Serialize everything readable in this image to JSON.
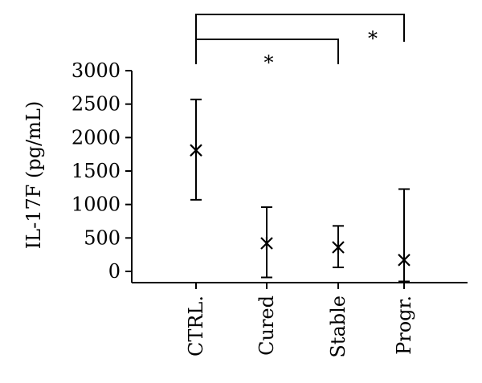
{
  "chart_data": {
    "type": "scatter",
    "title": "",
    "xlabel": "",
    "ylabel": "IL-17F (pg/mL)",
    "ylim": [
      0,
      3000
    ],
    "yticks": [
      0,
      500,
      1000,
      1500,
      2000,
      2500,
      3000
    ],
    "categories": [
      "CTRL.",
      "Cured",
      "Stable",
      "Progr."
    ],
    "series": [
      {
        "marker": "asterisk",
        "values": [
          1810,
          420,
          360,
          170
        ],
        "error_low": [
          1070,
          -90,
          60,
          -150
        ],
        "error_high": [
          2570,
          960,
          680,
          1230
        ]
      }
    ],
    "significance": [
      {
        "from": "CTRL.",
        "to": "Stable",
        "label": "*"
      },
      {
        "from": "CTRL.",
        "to": "Progr.",
        "label": "*"
      }
    ],
    "grid": false,
    "legend": "none"
  }
}
